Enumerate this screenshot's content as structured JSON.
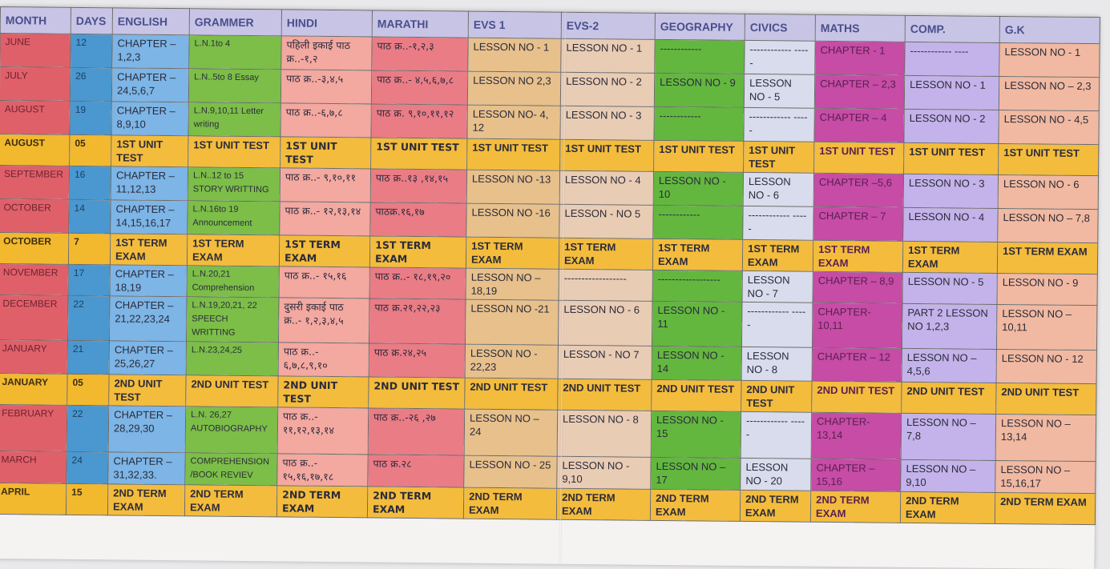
{
  "headers": [
    "MONTH",
    "DAYS",
    "ENGLISH",
    "GRAMMER",
    "HINDI",
    "MARATHI",
    "EVS 1",
    "EVS-2",
    "GEOGRAPHY",
    "CIVICS",
    "MATHS",
    "COMP.",
    "G.K"
  ],
  "rows": [
    {
      "type": "regular",
      "cells": [
        "JUNE",
        "12",
        "CHAPTER – 1,2,3",
        "L.N.1to 4",
        "पहिली इकाई पाठ क्र..-१,२",
        "पाठ क्र..-१,२,३",
        "LESSON NO - 1",
        "LESSON NO - 1",
        "------------",
        "------------ -----",
        "CHAPTER - 1",
        "------------ ----",
        "LESSON NO - 1"
      ]
    },
    {
      "type": "regular",
      "cells": [
        "JULY",
        "26",
        "CHAPTER – 24,5,6,7",
        "L.N..5to 8 Essay",
        "पाठ क्र..-३,४,५",
        "पाठ क्र..- ४,५,६,७,८",
        "LESSON NO 2,3",
        "LESSON NO - 2",
        "LESSON NO - 9",
        "LESSON NO - 5",
        "CHAPTER – 2,3",
        "LESSON NO - 1",
        "LESSON NO – 2,3"
      ]
    },
    {
      "type": "regular",
      "cells": [
        "AUGUST",
        "19",
        "CHAPTER – 8,9,10",
        "L.N.9,10,11 Letter writing",
        "पाठ क्र..-६,७,८",
        "पाठ क्र. ९,१०,११,१२",
        "LESSON NO- 4, 12",
        "LESSON NO - 3",
        "------------",
        "------------ -----",
        "CHAPTER – 4",
        "LESSON NO - 2",
        "LESSON NO - 4,5"
      ]
    },
    {
      "type": "exam",
      "cells": [
        "AUGUST",
        "05",
        "1ST UNIT TEST",
        "1ST UNIT TEST",
        "1ST UNIT TEST",
        "1ST UNIT TEST",
        "1ST UNIT TEST",
        "1ST UNIT TEST",
        "1ST UNIT TEST",
        "1ST UNIT TEST",
        "1ST UNIT TEST",
        "1ST UNIT TEST",
        "1ST UNIT TEST"
      ]
    },
    {
      "type": "regular",
      "cells": [
        "SEPTEMBER",
        "16",
        "CHAPTER – 11,12,13",
        "L.N..12 to 15 STORY WRITTING",
        "पाठ क्र..- ९,१०,११",
        "पाठ क्र..१३ ,१४,१५",
        "LESSON NO -13",
        "LESSON NO - 4",
        "LESSON NO - 10",
        "LESSON NO - 6",
        "CHAPTER –5,6",
        "LESSON NO - 3",
        "LESSON NO - 6"
      ]
    },
    {
      "type": "regular",
      "cells": [
        "OCTOBER",
        "14",
        "CHAPTER – 14,15,16,17",
        "L.N.16to 19 Announcement",
        "पाठ क्र..- १२,१३,१४",
        "पाठक्र.१६,१७",
        "LESSON NO -16",
        "LESSON - NO 5",
        "------------",
        "------------ -----",
        "CHAPTER – 7",
        "LESSON NO - 4",
        "LESSON NO – 7,8"
      ]
    },
    {
      "type": "exam",
      "cells": [
        "OCTOBER",
        "7",
        "1ST TERM EXAM",
        "1ST TERM EXAM",
        "1ST TERM EXAM",
        "1ST TERM EXAM",
        "1ST TERM EXAM",
        "1ST TERM EXAM",
        "1ST TERM EXAM",
        "1ST TERM EXAM",
        "1ST TERM EXAM",
        "1ST TERM EXAM",
        "1ST TERM EXAM"
      ]
    },
    {
      "type": "regular",
      "cells": [
        "NOVEMBER",
        "17",
        "CHAPTER – 18,19",
        "L.N.20,21 Comprehension",
        "पाठ क्र..- १५,१६",
        "पाठ क्र..- १८,१९,२०",
        "LESSON NO – 18,19",
        "------------------",
        "------------------",
        "LESSON NO - 7",
        "CHAPTER – 8,9",
        "LESSON NO - 5",
        "LESSON NO - 9"
      ]
    },
    {
      "type": "regular",
      "cells": [
        "DECEMBER",
        "22",
        "CHAPTER – 21,22,23,24",
        "L.N.19,20,21, 22 SPEECH WRITTING",
        "दुसरी इकाई पाठ क्र..- १,२,३,४,५",
        "पाठ क्र.२१,२२,२३",
        "LESSON NO -21",
        "LESSON NO - 6",
        "LESSON NO - 11",
        "------------ -----",
        "CHAPTER- 10,11",
        "PART 2 LESSON NO 1,2,3",
        "LESSON NO – 10,11"
      ]
    },
    {
      "type": "regular",
      "cells": [
        "JANUARY",
        "21",
        "CHAPTER – 25,26,27",
        "L.N.23,24,25",
        "पाठ क्र..- ६,७,८,९,१०",
        "पाठ क्र.२४,२५",
        "LESSON NO - 22,23",
        "LESSON - NO 7",
        "LESSON NO - 14",
        "LESSON NO - 8",
        "CHAPTER – 12",
        "LESSON NO – 4,5,6",
        "LESSON NO - 12"
      ]
    },
    {
      "type": "exam",
      "cells": [
        "JANUARY",
        "05",
        "2ND UNIT TEST",
        "2ND UNIT TEST",
        "2ND UNIT TEST",
        "2ND UNIT TEST",
        "2ND UNIT TEST",
        "2ND UNIT TEST",
        "2ND UNIT TEST",
        "2ND UNIT TEST",
        "2ND UNIT TEST",
        "2ND UNIT TEST",
        "2ND UNIT TEST"
      ]
    },
    {
      "type": "regular",
      "cells": [
        "FEBRUARY",
        "22",
        "CHAPTER – 28,29,30",
        "L.N. 26,27 AUTOBIOGRAPHY",
        "पाठ क्र..- ११,१२,१३,१४",
        "पाठ क्र..-२६ ,२७",
        "LESSON NO – 24",
        "LESSON NO - 8",
        "LESSON NO - 15",
        "------------ -----",
        "CHAPTER- 13,14",
        "LESSON NO – 7,8",
        "LESSON NO – 13,14"
      ]
    },
    {
      "type": "regular",
      "cells": [
        "MARCH",
        "24",
        "CHAPTER – 31,32,33.",
        "COMPREHENSION /BOOK REVIEV",
        "पाठ क्र..- १५,१६,१७,१८",
        "पाठ क्र.२८",
        "LESSON NO - 25",
        "LESSON NO - 9,10",
        "LESSON NO – 17",
        "LESSON NO - 20",
        "CHAPTER – 15,16",
        "LESSON NO – 9,10",
        "LESSON NO – 15,16,17"
      ]
    },
    {
      "type": "exam",
      "cells": [
        "APRIL",
        "15",
        "2ND TERM EXAM",
        "2ND TERM EXAM",
        "2ND TERM EXAM",
        "2ND TERM EXAM",
        "2ND TERM EXAM",
        "2ND TERM EXAM",
        "2ND TERM EXAM",
        "2ND TERM EXAM",
        "2ND TERM EXAM",
        "2ND TERM EXAM",
        "2ND TERM EXAM"
      ]
    }
  ],
  "colors": {
    "header": "#c8c4e6",
    "exam_row": "#f4bc3c",
    "month": "#e0606a",
    "days": "#4a98cf",
    "english": "#7cb5e6",
    "grammer": "#7cbe48",
    "hindi": "#f3a8a0",
    "marathi": "#ea7c86",
    "evs1": "#e7c08c",
    "evs2": "#e9ccb4",
    "geography": "#63b73f",
    "civics": "#d8dcec",
    "maths": "#c64ca6",
    "comp": "#c3b3ea",
    "gk": "#f1b9a1"
  }
}
